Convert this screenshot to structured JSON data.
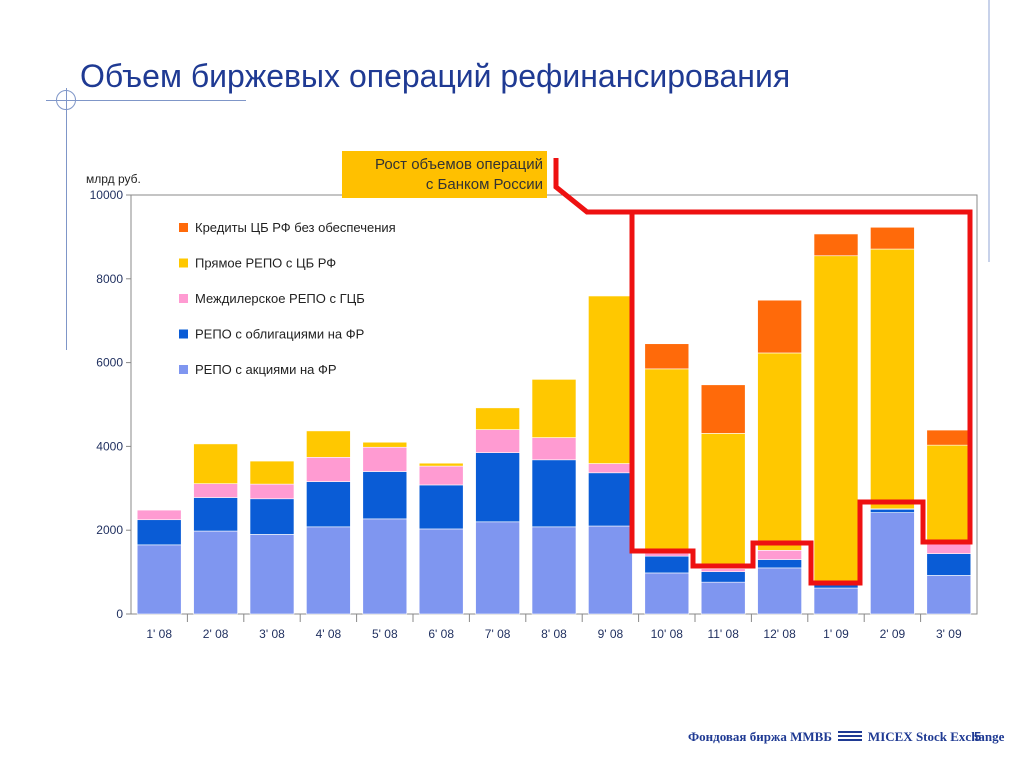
{
  "slide": {
    "title": "Объем биржевых операций рефинансирования",
    "units": "млрд руб.",
    "callout_line1": "Рост объемов операций",
    "callout_line2": "с Банком России",
    "footer_logo": "Фондовая биржа ММВБ",
    "footer_logo_en": "MICEX Stock Exchange",
    "page_number": "5"
  },
  "colors": {
    "repo_shares": "#7f96f0",
    "repo_bonds": "#0a5cd6",
    "interdealer": "#ff9bd2",
    "direct_repo": "#ffc800",
    "credits": "#ff6a0a",
    "highlight": "#ee1111",
    "axis_text": "#1f2f5f"
  },
  "chart_data": {
    "type": "bar",
    "stacked": true,
    "categories": [
      "1' 08",
      "2' 08",
      "3' 08",
      "4' 08",
      "5' 08",
      "6' 08",
      "7' 08",
      "8' 08",
      "9' 08",
      "10' 08",
      "11' 08",
      "12' 08",
      "1' 09",
      "2' 09",
      "3' 09"
    ],
    "ylim": [
      0,
      10000
    ],
    "yticks": [
      "0",
      "2000",
      "4000",
      "6000",
      "8000",
      "10000"
    ],
    "grid": false,
    "legend_position": "top-left",
    "series": [
      {
        "name": "РЕПО с акциями на ФР",
        "color_key": "repo_shares",
        "values": [
          1650,
          1980,
          1900,
          2080,
          2270,
          2030,
          2200,
          2080,
          2100,
          980,
          760,
          1100,
          620,
          2420,
          920
        ]
      },
      {
        "name": "РЕПО с облигациями на ФР",
        "color_key": "repo_bonds",
        "values": [
          600,
          800,
          850,
          1080,
          1130,
          1050,
          1650,
          1600,
          1270,
          400,
          250,
          200,
          80,
          80,
          520
        ]
      },
      {
        "name": "Междилерское РЕПО с ГЦБ",
        "color_key": "interdealer",
        "values": [
          230,
          330,
          350,
          580,
          580,
          450,
          550,
          530,
          220,
          70,
          70,
          220,
          0,
          10,
          250
        ]
      },
      {
        "name": "Прямое РЕПО с ЦБ РФ",
        "color_key": "direct_repo",
        "values": [
          0,
          950,
          550,
          630,
          120,
          70,
          520,
          1390,
          4000,
          4400,
          3230,
          4710,
          7850,
          6200,
          2340
        ]
      },
      {
        "name": "Кредиты ЦБ РФ без обеспечения",
        "color_key": "credits",
        "values": [
          0,
          0,
          0,
          0,
          0,
          0,
          0,
          0,
          0,
          600,
          1160,
          1260,
          520,
          520,
          360
        ]
      }
    ],
    "legend_order": [
      "Кредиты ЦБ РФ без обеспечения",
      "Прямое РЕПО с ЦБ РФ",
      "Междилерское РЕПО с ГЦБ",
      "РЕПО с облигациями на ФР",
      "РЕПО с акциями на ФР"
    ]
  }
}
